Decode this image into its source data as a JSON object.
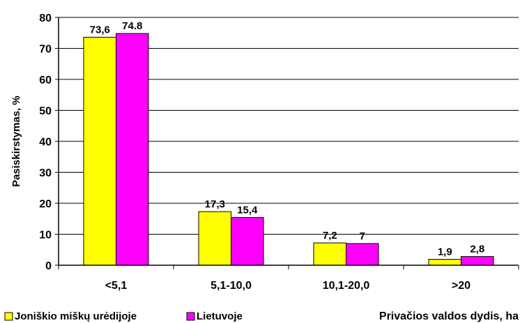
{
  "chart_data": {
    "type": "bar",
    "title": "",
    "xlabel": "Privačios valdos dydis, ha",
    "ylabel": "Pasiskirstymas, %",
    "categories": [
      "<5,1",
      "5,1-10,0",
      "10,1-20,0",
      ">20"
    ],
    "ylim": [
      0,
      80
    ],
    "ytick_values": [
      0,
      10,
      20,
      30,
      40,
      50,
      60,
      70,
      80
    ],
    "ytick_labels": [
      "0",
      "10",
      "20",
      "30",
      "40",
      "50",
      "60",
      "70",
      "80"
    ],
    "grid": true,
    "legend_position": "bottom-left",
    "series": [
      {
        "name": "Joniškio miškų urėdijoje",
        "color": "#ffff00",
        "values": [
          73.6,
          17.3,
          7.2,
          1.9
        ],
        "labels": [
          "73,6",
          "17,3",
          "7,2",
          "1,9"
        ]
      },
      {
        "name": "Lietuvoje",
        "color": "#ff00ff",
        "values": [
          74.8,
          15.4,
          7,
          2.8
        ],
        "labels": [
          "74.8",
          "15,4",
          "7",
          "2,8"
        ]
      }
    ]
  }
}
